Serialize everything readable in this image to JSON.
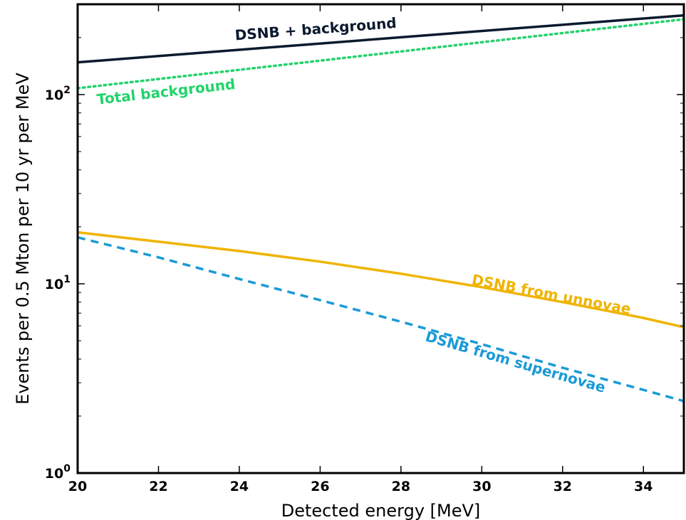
{
  "chart_data": {
    "type": "line",
    "xlabel": "Detected energy [MeV]",
    "ylabel": "Events per 0.5 Mton per 10 yr per MeV",
    "xlim": [
      20,
      35
    ],
    "ylim": [
      1,
      300
    ],
    "yscale": "log",
    "grid": false,
    "legend": "none",
    "x_ticks": [
      20,
      22,
      24,
      26,
      28,
      30,
      32,
      34
    ],
    "y_ticks": [
      {
        "value": 1,
        "base": "10",
        "exp": "0"
      },
      {
        "value": 10,
        "base": "10",
        "exp": "1"
      },
      {
        "value": 100,
        "base": "10",
        "exp": "2"
      }
    ],
    "series": [
      {
        "name": "DSNB + background",
        "color": "#0b1a2e",
        "style": "solid",
        "x": [
          20,
          35
        ],
        "y": [
          148,
          262
        ]
      },
      {
        "name": "Total background",
        "color": "#22d36b",
        "style": "dotted",
        "x": [
          20,
          35
        ],
        "y": [
          108,
          250
        ]
      },
      {
        "name": "DSNB from unnovae",
        "color": "#f0b400",
        "style": "solid",
        "x": [
          20,
          22,
          24,
          26,
          28,
          30,
          32,
          34,
          35
        ],
        "y": [
          18.7,
          16.7,
          14.9,
          13.1,
          11.3,
          9.6,
          8.0,
          6.6,
          5.9
        ],
        "label_pos": {
          "x": 31.7,
          "y": 8.3
        }
      },
      {
        "name": "DSNB from supernovae",
        "color": "#1a9ad6",
        "style": "dashed",
        "x": [
          20,
          22,
          24,
          26,
          28,
          30,
          32,
          34,
          35
        ],
        "y": [
          17.6,
          13.8,
          10.6,
          8.2,
          6.3,
          4.8,
          3.6,
          2.75,
          2.4
        ],
        "label_pos": {
          "x": 30.8,
          "y": 3.65
        }
      }
    ]
  }
}
